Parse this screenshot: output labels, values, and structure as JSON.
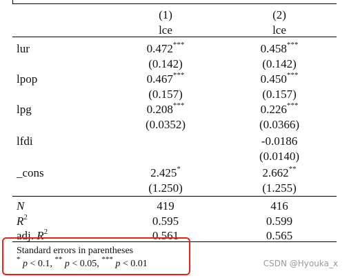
{
  "header": {
    "col1_num": "(1)",
    "col2_num": "(2)",
    "col1_dep": "lce",
    "col2_dep": "lce"
  },
  "rows": [
    {
      "label": "lur",
      "c1": "0.472",
      "c1_star": "***",
      "c1_se": "(0.142)",
      "c2": "0.458",
      "c2_star": "***",
      "c2_se": "(0.142)"
    },
    {
      "label": "lpop",
      "c1": "0.467",
      "c1_star": "***",
      "c1_se": "(0.157)",
      "c2": "0.450",
      "c2_star": "***",
      "c2_se": "(0.157)"
    },
    {
      "label": "lpg",
      "c1": "0.208",
      "c1_star": "***",
      "c1_se": "(0.0352)",
      "c2": "0.226",
      "c2_star": "***",
      "c2_se": "(0.0366)"
    },
    {
      "label": "lfdi",
      "c1": "",
      "c1_star": "",
      "c1_se": "",
      "c2": "-0.0186",
      "c2_star": "",
      "c2_se": "(0.0140)"
    },
    {
      "label": "_cons",
      "c1": "2.425",
      "c1_star": "*",
      "c1_se": "(1.250)",
      "c2": "2.662",
      "c2_star": "**",
      "c2_se": "(1.255)"
    }
  ],
  "stats": {
    "n_label": "N",
    "n1": "419",
    "n2": "416",
    "r2_label": "R",
    "r2_sup": "2",
    "r21": "0.595",
    "r22": "0.599",
    "adj_prefix": "adj. ",
    "adj_label": "R",
    "adj_sup": "2",
    "adj1": "0.561",
    "adj2": "0.565"
  },
  "notes": {
    "line1": "Standard errors in parentheses",
    "p1_star": "*",
    "p1_text": " < 0.1, ",
    "p2_star": "**",
    "p2_text": " < 0.05, ",
    "p3_star": "***",
    "p3_text": " < 0.01",
    "p_symbol": "p"
  },
  "watermark": "CSDN @Hyouka_x",
  "colors": {
    "highlight_box": "#e8211b",
    "watermark": "#9a9a9a"
  }
}
